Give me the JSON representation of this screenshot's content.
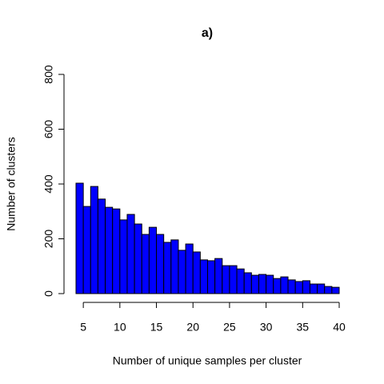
{
  "chart_data": {
    "type": "histogram",
    "title": "a)",
    "x_label": "Number of unique samples per cluster",
    "y_label": "Number of clusters",
    "bins": [
      4,
      5,
      6,
      7,
      8,
      9,
      10,
      11,
      12,
      13,
      14,
      15,
      16,
      17,
      18,
      19,
      20,
      21,
      22,
      23,
      24,
      25,
      26,
      27,
      28,
      29,
      30,
      31,
      32,
      33,
      34,
      35,
      36,
      37,
      38,
      39,
      40
    ],
    "values": [
      403,
      318,
      391,
      345,
      315,
      309,
      269,
      289,
      254,
      216,
      242,
      216,
      187,
      196,
      158,
      181,
      152,
      123,
      120,
      128,
      102,
      102,
      90,
      76,
      67,
      70,
      67,
      55,
      61,
      50,
      44,
      47,
      35,
      35,
      26,
      23
    ],
    "color": "#0000ff",
    "xlim": [
      4,
      40
    ],
    "xticks": [
      5,
      10,
      15,
      20,
      25,
      30,
      35,
      40
    ],
    "ylim": [
      0,
      800
    ],
    "yticks": [
      0,
      200,
      400,
      600,
      800
    ]
  }
}
